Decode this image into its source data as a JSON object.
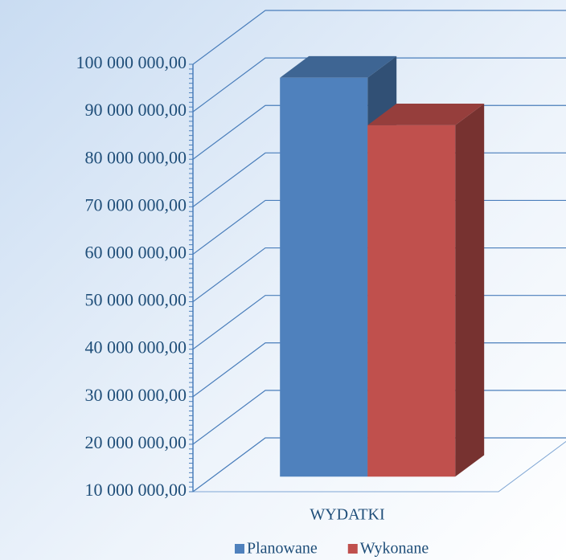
{
  "chart_data": {
    "type": "bar3d",
    "categories": [
      "WYDATKI"
    ],
    "series": [
      {
        "name": "Planowane",
        "color": "#4f81bd",
        "values": [
          94000000
        ]
      },
      {
        "name": "Wykonane",
        "color": "#c0504d",
        "values": [
          84000000
        ]
      }
    ],
    "ylim": [
      10000000,
      100000000
    ],
    "yticks": [
      {
        "value": 10000000,
        "label": "10 000 000,00"
      },
      {
        "value": 20000000,
        "label": "20 000 000,00"
      },
      {
        "value": 30000000,
        "label": "30 000 000,00"
      },
      {
        "value": 40000000,
        "label": "40 000 000,00"
      },
      {
        "value": 50000000,
        "label": "50 000 000,00"
      },
      {
        "value": 60000000,
        "label": "60 000 000,00"
      },
      {
        "value": 70000000,
        "label": "70 000 000,00"
      },
      {
        "value": 80000000,
        "label": "80 000 000,00"
      },
      {
        "value": 90000000,
        "label": "90 000 000,00"
      },
      {
        "value": 100000000,
        "label": "100 000 000,00"
      }
    ],
    "grid": true,
    "legend": "bottom"
  }
}
